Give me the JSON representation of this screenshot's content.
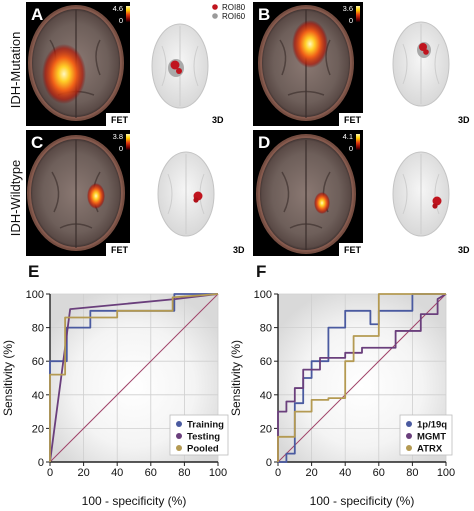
{
  "row_labels": [
    "IDH-Mutation",
    "IDH-Wildtype"
  ],
  "legend_3d": [
    "ROI80",
    "ROI60"
  ],
  "panels": [
    {
      "letter": "A",
      "scale_max": "4.6",
      "scale_min": "0",
      "modality": "FET",
      "view": "3D"
    },
    {
      "letter": "B",
      "scale_max": "3.6",
      "scale_min": "0",
      "modality": "FET",
      "view": "3D"
    },
    {
      "letter": "C",
      "scale_max": "3.8",
      "scale_min": "0",
      "modality": "FET",
      "view": "3D"
    },
    {
      "letter": "D",
      "scale_max": "4.1",
      "scale_min": "0",
      "modality": "FET",
      "view": "3D"
    }
  ],
  "colors": {
    "training": "#4a5aa0",
    "testing": "#6a3f7c",
    "pooled": "#b49a52",
    "p19q": "#4a5aa0",
    "mgmt": "#6a3f7c",
    "atrx": "#b49a52",
    "diagonal": "#a0446a",
    "roi80": "#c0141e",
    "roi60": "#9a9a9a"
  },
  "chart_data": [
    {
      "type": "line",
      "panel": "E",
      "xlabel": "100 - specificity (%)",
      "ylabel": "Sensitivity (%)",
      "xlim": [
        0,
        100
      ],
      "ylim": [
        0,
        100
      ],
      "xticks": [
        "0",
        "20",
        "40",
        "60",
        "80",
        "100"
      ],
      "yticks": [
        "0",
        "20",
        "40",
        "60",
        "80",
        "100"
      ],
      "grid": true,
      "legend_position": "bottom-right",
      "series": [
        {
          "name": "Training",
          "color_key": "training",
          "x": [
            0,
            0,
            10,
            10,
            24,
            24,
            74,
            74,
            100
          ],
          "y": [
            0,
            60,
            60,
            80,
            80,
            90,
            90,
            100,
            100
          ]
        },
        {
          "name": "Testing",
          "color_key": "testing",
          "x": [
            0,
            12,
            75,
            100
          ],
          "y": [
            0,
            91,
            97,
            100
          ]
        },
        {
          "name": "Pooled",
          "color_key": "pooled",
          "x": [
            0,
            0,
            9,
            9,
            40,
            40,
            73,
            73,
            100
          ],
          "y": [
            0,
            52,
            52,
            86,
            86,
            90,
            90,
            98,
            100
          ]
        }
      ]
    },
    {
      "type": "line",
      "panel": "F",
      "xlabel": "100 - specificity (%)",
      "ylabel": "Sensitivity (%)",
      "xlim": [
        0,
        100
      ],
      "ylim": [
        0,
        100
      ],
      "xticks": [
        "0",
        "20",
        "40",
        "60",
        "80",
        "100"
      ],
      "yticks": [
        "0",
        "20",
        "40",
        "60",
        "80",
        "100"
      ],
      "grid": true,
      "legend_position": "bottom-right",
      "series": [
        {
          "name": "1p/19q",
          "color_key": "p19q",
          "x": [
            0,
            5,
            5,
            10,
            10,
            15,
            15,
            20,
            20,
            30,
            30,
            40,
            40,
            55,
            55,
            60,
            60,
            80,
            80,
            100
          ],
          "y": [
            0,
            0,
            5,
            5,
            35,
            35,
            50,
            50,
            60,
            60,
            80,
            80,
            90,
            90,
            82,
            82,
            90,
            90,
            100,
            100
          ]
        },
        {
          "name": "MGMT",
          "color_key": "mgmt",
          "x": [
            0,
            0,
            5,
            5,
            10,
            10,
            15,
            15,
            25,
            25,
            40,
            40,
            50,
            50,
            70,
            70,
            85,
            85,
            95,
            95,
            100
          ],
          "y": [
            0,
            30,
            30,
            36,
            36,
            44,
            44,
            55,
            55,
            62,
            62,
            65,
            65,
            68,
            68,
            78,
            78,
            88,
            88,
            97,
            100
          ]
        },
        {
          "name": "ATRX",
          "color_key": "atrx",
          "x": [
            0,
            0,
            10,
            10,
            20,
            20,
            30,
            30,
            40,
            40,
            45,
            45,
            60,
            60,
            75,
            75,
            100
          ],
          "y": [
            0,
            15,
            15,
            30,
            30,
            37,
            37,
            38,
            38,
            60,
            60,
            75,
            75,
            100,
            100,
            100,
            100
          ]
        }
      ]
    }
  ]
}
